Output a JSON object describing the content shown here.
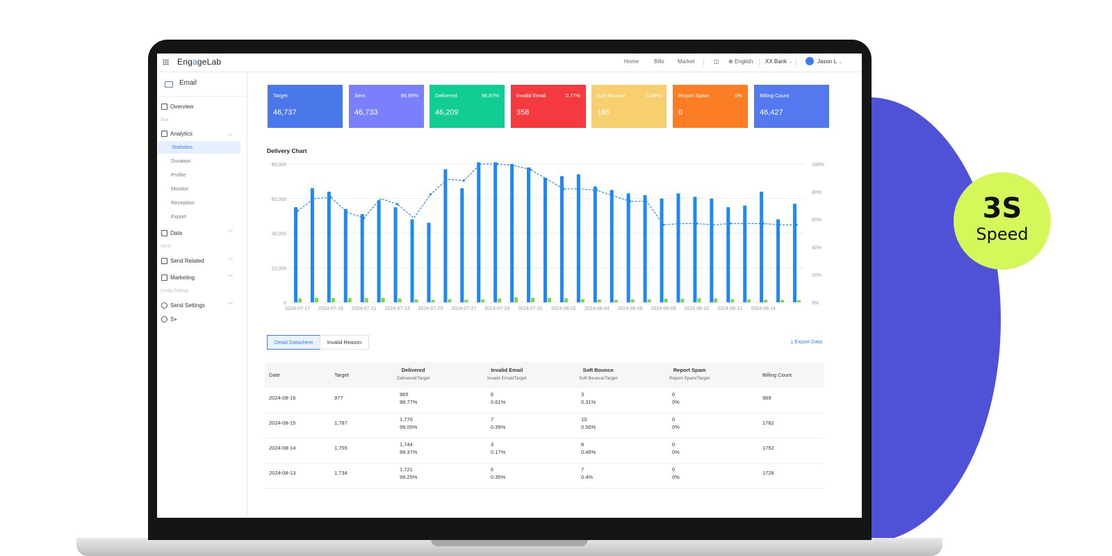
{
  "badge": {
    "value": "3S",
    "label": "Speed"
  },
  "app": {
    "logo_prefix": "Eng",
    "logo_accent": "a",
    "logo_mid": "ge",
    "logo_suffix": "Lab",
    "nav": [
      "Home",
      "Bills",
      "Market"
    ],
    "language": "English",
    "org": "XX Bank",
    "user": "Jason L"
  },
  "sidebar": {
    "title": "Email",
    "overview": "Overview",
    "groups": {
      "stat": "Stat",
      "send": "Send",
      "config": "Config Settings"
    },
    "analytics": "Analytics",
    "analytics_items": [
      "Statistics",
      "Duration",
      "Profile",
      "Monitor",
      "Reception",
      "Export"
    ],
    "data": "Data",
    "send_related": "Send Related",
    "marketing": "Marketing",
    "send_settings": "Send Settings",
    "splus": "S+"
  },
  "cards": [
    {
      "label": "Target",
      "percent": "",
      "value": "46,737",
      "color": "#4a77ea"
    },
    {
      "label": "Sent",
      "percent": "99.99%",
      "value": "46,733",
      "color": "#7a7ffb"
    },
    {
      "label": "Delivered",
      "percent": "98.87%",
      "value": "46,209",
      "color": "#11cc93"
    },
    {
      "label": "Invalid Email",
      "percent": "0.77%",
      "value": "358",
      "color": "#f53a3f"
    },
    {
      "label": "Soft Bounce",
      "percent": "0.36%",
      "value": "166",
      "color": "#f8cf6f"
    },
    {
      "label": "Report Spam",
      "percent": "0%",
      "value": "0",
      "color": "#fb7d24"
    },
    {
      "label": "Billing Count",
      "percent": "",
      "value": "46,427",
      "color": "#5479ee"
    }
  ],
  "chart_title": "Delivery Chart",
  "chart_data": {
    "type": "bar",
    "x_tick_labels": [
      "2024-07-17",
      "2024-07-19",
      "2024-07-21",
      "2024-07-23",
      "2024-07-25",
      "2024-07-27",
      "2024-07-29",
      "2024-07-31",
      "2024-08-02",
      "2024-08-04",
      "2024-08-06",
      "2024-08-08",
      "2024-08-10",
      "2024-08-12",
      "2024-08-14"
    ],
    "categories": [
      "2024-07-17",
      "2024-07-18",
      "2024-07-19",
      "2024-07-20",
      "2024-07-21",
      "2024-07-22",
      "2024-07-23",
      "2024-07-24",
      "2024-07-25",
      "2024-07-26",
      "2024-07-27",
      "2024-07-28",
      "2024-07-29",
      "2024-07-30",
      "2024-07-31",
      "2024-08-01",
      "2024-08-02",
      "2024-08-03",
      "2024-08-04",
      "2024-08-05",
      "2024-08-06",
      "2024-08-07",
      "2024-08-08",
      "2024-08-09",
      "2024-08-10",
      "2024-08-11",
      "2024-08-12",
      "2024-08-13",
      "2024-08-14",
      "2024-08-15",
      "2024-08-16"
    ],
    "series": [
      {
        "type": "bar",
        "color": "#1e88f5",
        "values": [
          55000,
          66000,
          64000,
          54000,
          51000,
          59000,
          55000,
          48000,
          46000,
          77000,
          66000,
          81000,
          81000,
          80000,
          78000,
          72000,
          73000,
          74000,
          67000,
          65000,
          63000,
          62000,
          60000,
          63000,
          61000,
          60000,
          55000,
          56000,
          64000,
          48000,
          57000
        ]
      },
      {
        "type": "bar",
        "color": "#7ad64a",
        "values": [
          2200,
          2600,
          2400,
          2500,
          2400,
          2600,
          2200,
          1600,
          1400,
          1800,
          1500,
          1700,
          2200,
          2800,
          2600,
          2500,
          2300,
          1800,
          1600,
          1400,
          1700,
          1700,
          2000,
          2100,
          2300,
          2200,
          1800,
          1700,
          1500,
          1400,
          1300
        ]
      },
      {
        "type": "line",
        "axis": "right",
        "color": "#1e88f5",
        "values": [
          66,
          75,
          76,
          65,
          61,
          75,
          71,
          61,
          78,
          89,
          88,
          100,
          100,
          99,
          96,
          89,
          82,
          82,
          81,
          77,
          73,
          73,
          56,
          57,
          57,
          56,
          57,
          57,
          57,
          56,
          56
        ]
      }
    ],
    "y_ticks": [
      "0",
      "20,000",
      "40,000",
      "60,000",
      "80,000"
    ],
    "ylim": [
      0,
      80000
    ],
    "y2_ticks": [
      "0%",
      "20%",
      "40%",
      "60%",
      "80%",
      "100%"
    ],
    "y2lim": [
      0,
      100
    ],
    "grid": true
  },
  "tabs": [
    "Detail Datasheet",
    "Invalid Reason"
  ],
  "export_label": "⤓ Export Data",
  "table": {
    "headers": {
      "date": "Date",
      "target": "Target",
      "delivered": "Delivered",
      "delivered_sub": "Delivered/Target",
      "invalid": "Invalid Email",
      "invalid_sub": "Invalid Email/Target",
      "soft": "Soft Bounce",
      "soft_sub": "Soft Bounce/Target",
      "spam": "Report Spam",
      "spam_sub": "Report Spam/Target",
      "billing": "Billing Count"
    },
    "rows": [
      {
        "date": "2024-08-16",
        "target": "977",
        "delivered": "965",
        "delivered_pct": "98.77%",
        "invalid": "6",
        "invalid_pct": "0.61%",
        "soft": "3",
        "soft_pct": "0.31%",
        "spam": "0",
        "spam_pct": "0%",
        "billing": "969"
      },
      {
        "date": "2024-08-15",
        "target": "1,787",
        "delivered": "1,770",
        "delivered_pct": "99.05%",
        "invalid": "7",
        "invalid_pct": "0.39%",
        "soft": "10",
        "soft_pct": "0.56%",
        "spam": "0",
        "spam_pct": "0%",
        "billing": "1782"
      },
      {
        "date": "2024-08-14",
        "target": "1,755",
        "delivered": "1,744",
        "delivered_pct": "99.37%",
        "invalid": "3",
        "invalid_pct": "0.17%",
        "soft": "8",
        "soft_pct": "0.46%",
        "spam": "0",
        "spam_pct": "0%",
        "billing": "1752"
      },
      {
        "date": "2024-08-13",
        "target": "1,734",
        "delivered": "1,721",
        "delivered_pct": "99.25%",
        "invalid": "6",
        "invalid_pct": "0.35%",
        "soft": "7",
        "soft_pct": "0.4%",
        "spam": "0",
        "spam_pct": "0%",
        "billing": "1728"
      }
    ]
  }
}
